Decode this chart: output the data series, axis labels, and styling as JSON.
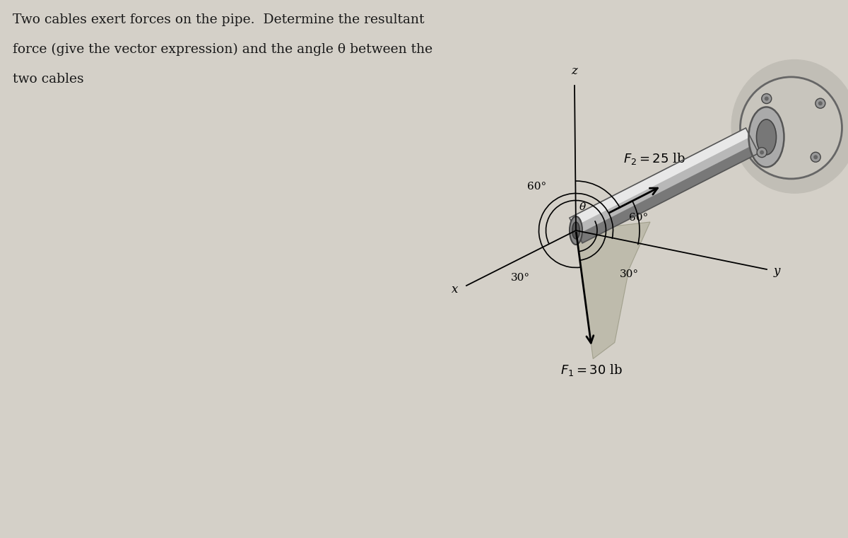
{
  "bg_color": "#d4d0c8",
  "text_color": "#1a1a1a",
  "title_lines": [
    "Two cables exert forces on the pipe.  Determine the resultant",
    "force (give the vector expression) and the angle θ between the",
    "two cables"
  ],
  "title_fontsize": 13.5,
  "F1_label": "$F_1 = 30$ lb",
  "F2_label": "$F_2 = 25$ lb",
  "angle_60_label1": "60°",
  "angle_60_label2": "60°",
  "angle_30_label1": "30°",
  "angle_30_label2": "30°",
  "theta_label": "θ",
  "x_label": "x",
  "y_label": "y",
  "z_label": "z",
  "pipe_color_main": "#b8b8b8",
  "pipe_color_hi": "#e8e8e8",
  "pipe_color_shadow": "#787878",
  "wall_color": "#c0bdb5",
  "wall_edge": "#707070"
}
